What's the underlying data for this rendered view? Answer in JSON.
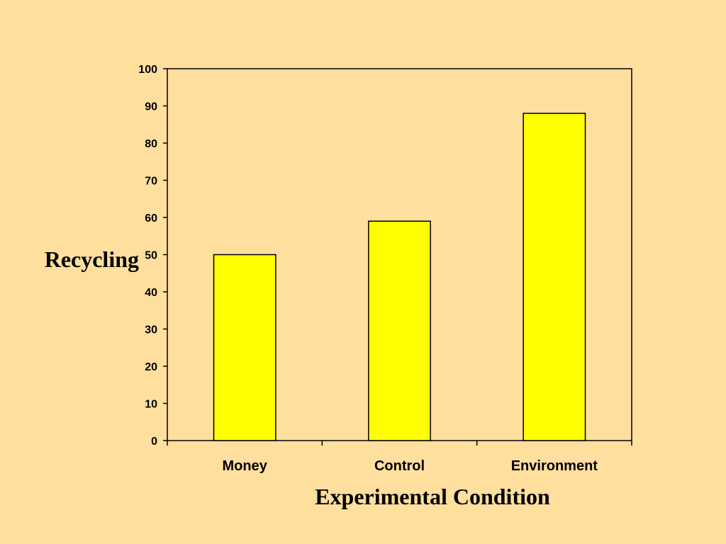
{
  "chart_data": {
    "type": "bar",
    "categories": [
      "Money",
      "Control",
      "Environment"
    ],
    "values": [
      50,
      59,
      88
    ],
    "xlabel": "Experimental Condition",
    "ylabel": "Recycling",
    "ylim": [
      0,
      100
    ],
    "yticks": [
      0,
      10,
      20,
      30,
      40,
      50,
      60,
      70,
      80,
      90,
      100
    ],
    "grid": false,
    "legend": "none",
    "colors": {
      "background": "#FFDF9E",
      "bar_fill": "#FFFF00",
      "bar_stroke": "#000000",
      "axis": "#000000"
    }
  }
}
